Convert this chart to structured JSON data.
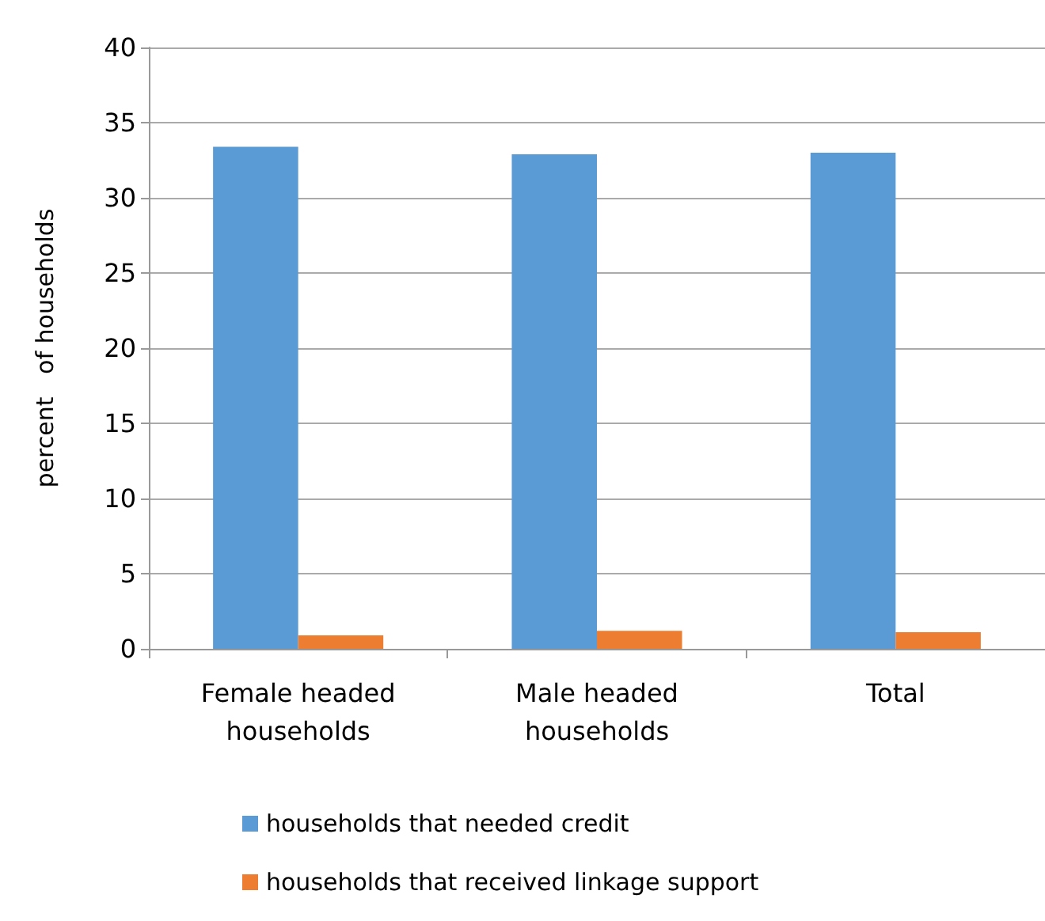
{
  "chart_data": {
    "type": "bar",
    "ylabel": "percent   of households",
    "categories": [
      "Female headed\nhouseholds",
      "Male headed\nhouseholds",
      "Total"
    ],
    "series": [
      {
        "name": "households that needed credit",
        "color": "#5b9bd5",
        "values": [
          33.4,
          32.9,
          33.0
        ]
      },
      {
        "name": "households that received linkage support",
        "color": "#ed7d31",
        "values": [
          0.9,
          1.2,
          1.1
        ]
      }
    ],
    "ylim": [
      0,
      40
    ],
    "yticks": [
      0,
      5,
      10,
      15,
      20,
      25,
      30,
      35,
      40
    ],
    "grid": "y",
    "legend": "bottom"
  }
}
